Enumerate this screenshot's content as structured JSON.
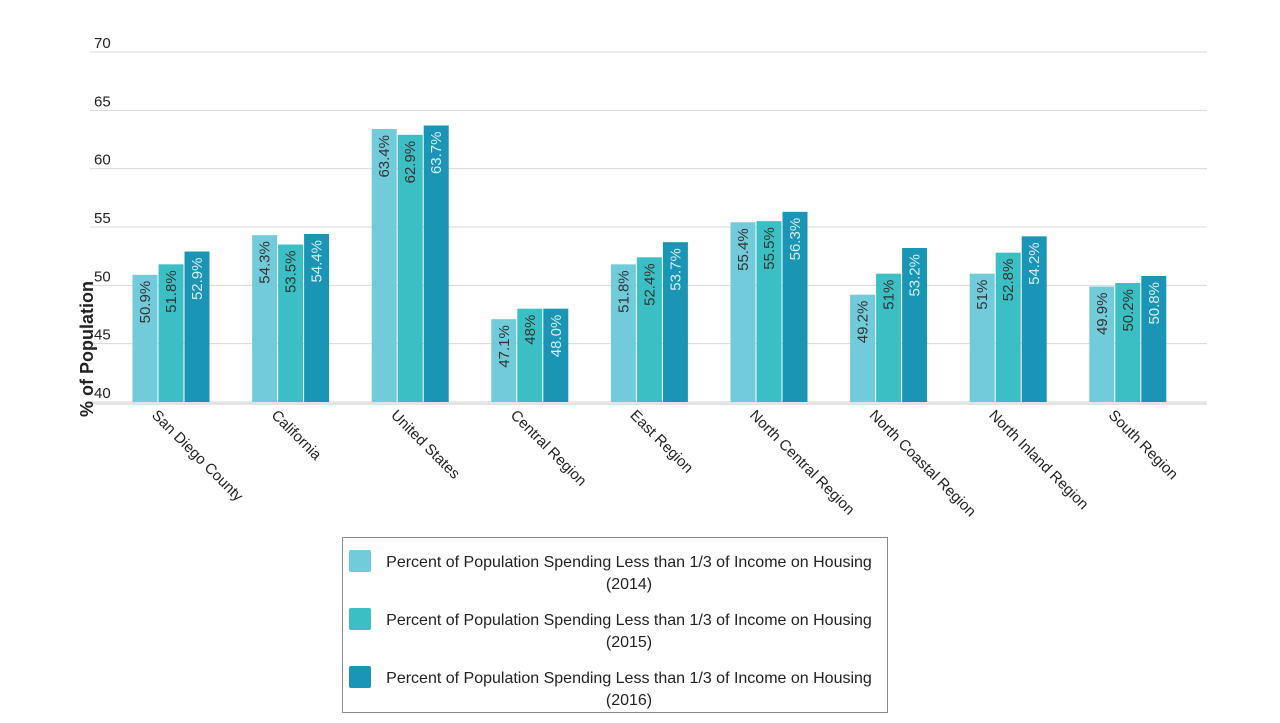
{
  "chart_data": {
    "type": "bar",
    "ylabel": "% of Population",
    "xlabel": "",
    "ylim": [
      40,
      70
    ],
    "yticks": [
      40,
      45,
      50,
      55,
      60,
      65,
      70
    ],
    "grid": true,
    "legend_position": "bottom",
    "categories": [
      "San Diego County",
      "California",
      "United States",
      "Central Region",
      "East Region",
      "North Central Region",
      "North Coastal Region",
      "North Inland Region",
      "South Region"
    ],
    "series": [
      {
        "name": "Percent of Population Spending Less than 1/3 of Income on Housing (2014)",
        "color": "#72cbdb",
        "label_color": "#333333",
        "values": [
          50.9,
          54.3,
          63.4,
          47.1,
          51.8,
          55.4,
          49.2,
          51,
          49.9
        ],
        "labels": [
          "50.9%",
          "54.3%",
          "63.4%",
          "47.1%",
          "51.8%",
          "55.4%",
          "49.2%",
          "51%",
          "49.9%"
        ]
      },
      {
        "name": "Percent of Population Spending Less than 1/3 of Income on Housing (2015)",
        "color": "#3bbfc4",
        "label_color": "#333333",
        "values": [
          51.8,
          53.5,
          62.9,
          48,
          52.4,
          55.5,
          51,
          52.8,
          50.2
        ],
        "labels": [
          "51.8%",
          "53.5%",
          "62.9%",
          "48%",
          "52.4%",
          "55.5%",
          "51%",
          "52.8%",
          "50.2%"
        ]
      },
      {
        "name": "Percent of Population Spending Less than 1/3 of Income on Housing (2016)",
        "color": "#1a95b5",
        "label_color": "#d8eef3",
        "values": [
          52.9,
          54.4,
          63.7,
          48.0,
          53.7,
          56.3,
          53.2,
          54.2,
          50.8
        ],
        "labels": [
          "52.9%",
          "54.4%",
          "63.7%",
          "48.0%",
          "53.7%",
          "56.3%",
          "53.2%",
          "54.2%",
          "50.8%"
        ]
      }
    ]
  }
}
